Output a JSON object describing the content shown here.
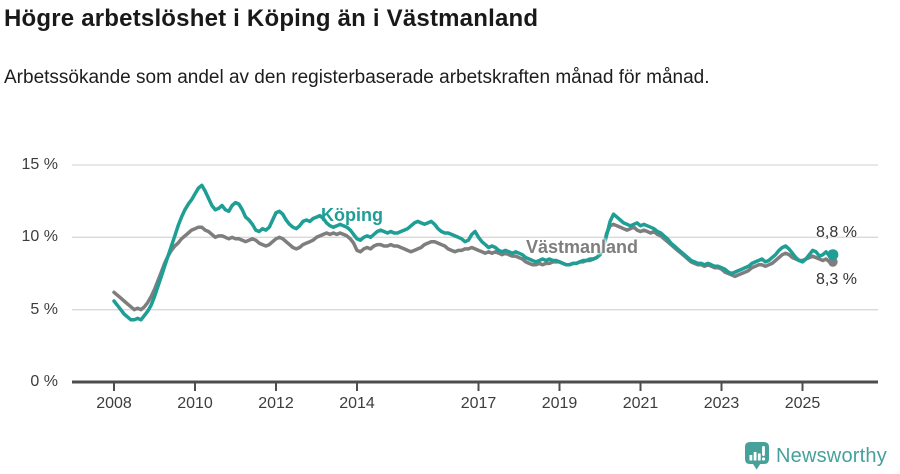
{
  "header": {
    "title": "Högre arbetslöshet i Köping än i Västmanland",
    "subtitle": "Arbetssökande som andel av den registerbaserade arbetskraften månad för månad."
  },
  "chart_data": {
    "type": "line",
    "x_unit": "month",
    "x_start": "2008-01",
    "x_end": "2025-10",
    "x_tick_years": [
      2008,
      2010,
      2012,
      2014,
      2017,
      2019,
      2021,
      2023,
      2025
    ],
    "y_tick_values": [
      0,
      5,
      10,
      15
    ],
    "y_tick_labels": [
      "0 %",
      "5 %",
      "10 %",
      "15 %"
    ],
    "ylim": [
      0,
      15.5
    ],
    "grid": "horizontal",
    "legend_position": "inline-labels",
    "series": [
      {
        "name": "Köping",
        "color": "#1e9e95",
        "end_label": "8,8 %",
        "end_value": 8.8,
        "values": [
          5.6,
          5.3,
          5.0,
          4.7,
          4.5,
          4.3,
          4.3,
          4.4,
          4.3,
          4.6,
          4.9,
          5.3,
          5.9,
          6.6,
          7.3,
          8.0,
          8.7,
          9.4,
          10.1,
          10.8,
          11.4,
          11.9,
          12.3,
          12.6,
          13.0,
          13.4,
          13.6,
          13.2,
          12.7,
          12.2,
          11.9,
          12.0,
          12.2,
          11.9,
          11.8,
          12.2,
          12.4,
          12.3,
          11.9,
          11.4,
          11.2,
          10.9,
          10.5,
          10.4,
          10.6,
          10.5,
          10.7,
          11.2,
          11.7,
          11.8,
          11.6,
          11.2,
          10.9,
          10.7,
          10.6,
          10.8,
          11.1,
          11.2,
          11.1,
          11.3,
          11.4,
          11.5,
          11.3,
          11.0,
          10.8,
          10.7,
          10.8,
          10.9,
          10.8,
          10.7,
          10.5,
          10.2,
          9.9,
          9.8,
          10.0,
          10.1,
          10.0,
          10.2,
          10.4,
          10.5,
          10.4,
          10.3,
          10.4,
          10.3,
          10.3,
          10.4,
          10.5,
          10.6,
          10.8,
          11.0,
          11.1,
          11.0,
          10.9,
          11.0,
          11.1,
          10.9,
          10.6,
          10.4,
          10.3,
          10.3,
          10.2,
          10.1,
          10.0,
          9.9,
          9.7,
          9.8,
          10.2,
          10.4,
          10.0,
          9.7,
          9.5,
          9.3,
          9.4,
          9.3,
          9.1,
          9.0,
          9.1,
          9.0,
          8.9,
          9.0,
          8.9,
          8.8,
          8.6,
          8.5,
          8.4,
          8.3,
          8.4,
          8.5,
          8.4,
          8.5,
          8.4,
          8.4,
          8.3,
          8.2,
          8.1,
          8.1,
          8.2,
          8.2,
          8.3,
          8.4,
          8.4,
          8.5,
          8.5,
          8.6,
          8.8,
          9.3,
          10.2,
          11.1,
          11.6,
          11.4,
          11.2,
          11.0,
          10.9,
          10.8,
          10.9,
          11.0,
          10.8,
          10.9,
          10.8,
          10.7,
          10.6,
          10.4,
          10.3,
          10.1,
          9.9,
          9.6,
          9.4,
          9.2,
          9.0,
          8.8,
          8.6,
          8.4,
          8.3,
          8.2,
          8.2,
          8.1,
          8.2,
          8.1,
          8.0,
          8.0,
          7.9,
          7.8,
          7.6,
          7.5,
          7.6,
          7.7,
          7.8,
          7.9,
          8.0,
          8.2,
          8.3,
          8.4,
          8.5,
          8.3,
          8.4,
          8.6,
          8.8,
          9.1,
          9.3,
          9.4,
          9.2,
          8.9,
          8.6,
          8.4,
          8.3,
          8.5,
          8.8,
          9.1,
          9.0,
          8.7,
          8.8,
          9.0,
          8.7,
          8.8
        ]
      },
      {
        "name": "Västmanland",
        "color": "#7e7e7e",
        "end_label": "8,3 %",
        "end_value": 8.3,
        "values": [
          6.2,
          6.0,
          5.8,
          5.6,
          5.4,
          5.2,
          5.0,
          5.1,
          5.0,
          5.2,
          5.5,
          5.9,
          6.4,
          7.0,
          7.6,
          8.2,
          8.7,
          9.1,
          9.4,
          9.6,
          9.9,
          10.1,
          10.3,
          10.5,
          10.6,
          10.7,
          10.7,
          10.5,
          10.4,
          10.2,
          10.0,
          10.1,
          10.1,
          10.0,
          9.9,
          10.0,
          9.9,
          9.9,
          9.8,
          9.7,
          9.8,
          9.9,
          9.8,
          9.6,
          9.5,
          9.4,
          9.5,
          9.7,
          9.9,
          10.0,
          9.9,
          9.7,
          9.5,
          9.3,
          9.2,
          9.3,
          9.5,
          9.6,
          9.7,
          9.8,
          10.0,
          10.1,
          10.2,
          10.3,
          10.2,
          10.3,
          10.2,
          10.3,
          10.2,
          10.1,
          9.9,
          9.6,
          9.1,
          9.0,
          9.2,
          9.3,
          9.2,
          9.4,
          9.5,
          9.5,
          9.4,
          9.4,
          9.5,
          9.4,
          9.4,
          9.3,
          9.2,
          9.1,
          9.0,
          9.1,
          9.2,
          9.3,
          9.5,
          9.6,
          9.7,
          9.7,
          9.6,
          9.5,
          9.4,
          9.2,
          9.1,
          9.0,
          9.1,
          9.1,
          9.2,
          9.2,
          9.3,
          9.2,
          9.1,
          9.0,
          8.9,
          9.0,
          8.9,
          9.0,
          8.9,
          8.8,
          8.9,
          8.8,
          8.7,
          8.7,
          8.6,
          8.5,
          8.3,
          8.2,
          8.1,
          8.1,
          8.2,
          8.1,
          8.2,
          8.2,
          8.3,
          8.3,
          8.3,
          8.2,
          8.1,
          8.1,
          8.2,
          8.2,
          8.3,
          8.3,
          8.4,
          8.4,
          8.5,
          8.6,
          8.8,
          9.4,
          10.3,
          10.8,
          10.9,
          10.8,
          10.7,
          10.6,
          10.5,
          10.6,
          10.7,
          10.5,
          10.4,
          10.5,
          10.4,
          10.3,
          10.4,
          10.2,
          10.1,
          9.9,
          9.7,
          9.5,
          9.3,
          9.1,
          8.9,
          8.7,
          8.5,
          8.3,
          8.2,
          8.1,
          8.1,
          8.0,
          8.1,
          8.0,
          7.9,
          7.9,
          7.8,
          7.6,
          7.5,
          7.4,
          7.3,
          7.4,
          7.5,
          7.6,
          7.7,
          7.9,
          8.0,
          8.1,
          8.1,
          8.0,
          8.1,
          8.2,
          8.4,
          8.6,
          8.8,
          8.9,
          8.8,
          8.6,
          8.5,
          8.4,
          8.4,
          8.5,
          8.6,
          8.7,
          8.6,
          8.5,
          8.4,
          8.5,
          8.3,
          8.3
        ]
      }
    ]
  },
  "footer": {
    "brand": "Newsworthy"
  }
}
